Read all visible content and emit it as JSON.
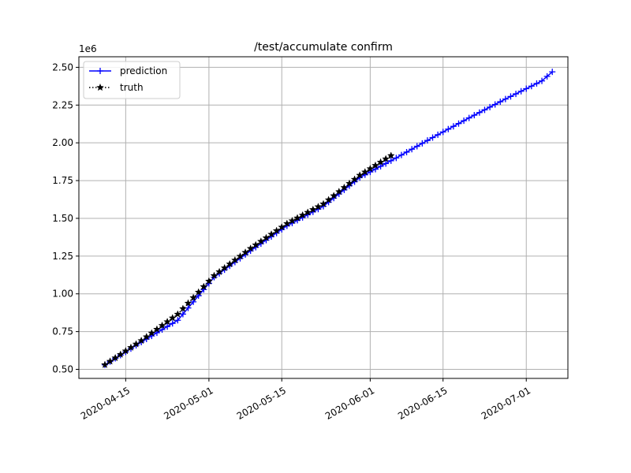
{
  "chart_data": {
    "type": "line",
    "title": "/test/accumulate confirm",
    "xlabel": "",
    "ylabel": "",
    "y_offset_text": "1e6",
    "x_axis_type": "date",
    "xlim": [
      "2020-04-06",
      "2020-07-09"
    ],
    "ylim": [
      440000,
      2570000
    ],
    "x_ticks": [
      "2020-04-15",
      "2020-05-01",
      "2020-05-15",
      "2020-06-01",
      "2020-06-15",
      "2020-07-01"
    ],
    "y_ticks": [
      500000,
      750000,
      1000000,
      1250000,
      1500000,
      1750000,
      2000000,
      2250000,
      2500000
    ],
    "y_tick_labels": [
      "0.50",
      "0.75",
      "1.00",
      "1.25",
      "1.50",
      "1.75",
      "2.00",
      "2.25",
      "2.50"
    ],
    "grid": true,
    "legend_position": "upper-left",
    "series": [
      {
        "name": "prediction",
        "color": "#0000ff",
        "marker": "plus",
        "linestyle": "solid",
        "points": [
          [
            "2020-04-11",
            530000
          ],
          [
            "2020-04-18",
            680000
          ],
          [
            "2020-04-25",
            825000
          ],
          [
            "2020-05-02",
            1110000
          ],
          [
            "2020-05-09",
            1285000
          ],
          [
            "2020-05-16",
            1450000
          ],
          [
            "2020-05-23",
            1580000
          ],
          [
            "2020-05-30",
            1770000
          ],
          [
            "2020-06-06",
            1900000
          ],
          [
            "2020-06-13",
            2035000
          ],
          [
            "2020-06-20",
            2165000
          ],
          [
            "2020-06-27",
            2290000
          ],
          [
            "2020-07-04",
            2410000
          ],
          [
            "2020-07-06",
            2470000
          ]
        ]
      },
      {
        "name": "truth",
        "color": "#000000",
        "marker": "star",
        "linestyle": "dotted",
        "points": [
          [
            "2020-04-11",
            530000
          ],
          [
            "2020-04-18",
            690000
          ],
          [
            "2020-04-25",
            865000
          ],
          [
            "2020-05-02",
            1120000
          ],
          [
            "2020-05-09",
            1300000
          ],
          [
            "2020-05-16",
            1465000
          ],
          [
            "2020-05-23",
            1595000
          ],
          [
            "2020-05-30",
            1785000
          ],
          [
            "2020-06-05",
            1915000
          ]
        ]
      }
    ]
  }
}
